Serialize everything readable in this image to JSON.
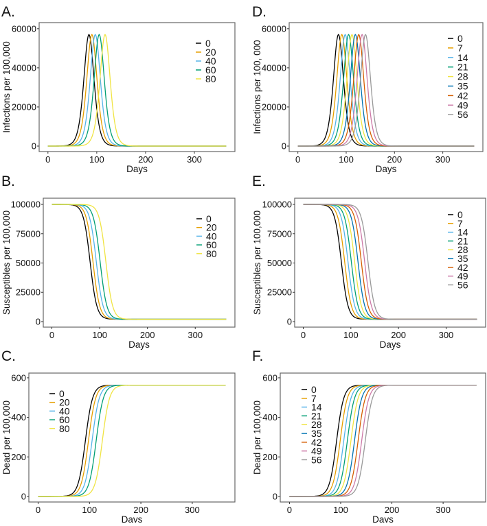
{
  "chart_data": [
    {
      "panel_label": "A.",
      "type": "line",
      "xlabel": "Days",
      "ylabel": "Infections per 100,000",
      "xlim": [
        -18,
        383
      ],
      "ylim": [
        -2800,
        63100
      ],
      "xticks": [
        0,
        100,
        200,
        300
      ],
      "yticks": [
        0,
        20000,
        40000,
        60000
      ],
      "grid": false,
      "legend_position": "top-right",
      "x_domain": [
        0,
        365
      ],
      "curve": "epidemic-peak",
      "peak_value": 57000,
      "series": [
        {
          "name": "0",
          "color": "#000000",
          "peak_day": 84
        },
        {
          "name": "20",
          "color": "#E69F00",
          "peak_day": 90
        },
        {
          "name": "40",
          "color": "#56B4E9",
          "peak_day": 97
        },
        {
          "name": "60",
          "color": "#009E73",
          "peak_day": 105
        },
        {
          "name": "80",
          "color": "#F0E442",
          "peak_day": 117
        }
      ]
    },
    {
      "panel_label": "B.",
      "type": "line",
      "xlabel": "Days",
      "ylabel": "Susceptibles per 100,000",
      "xlim": [
        -18,
        383
      ],
      "ylim": [
        -4700,
        105300
      ],
      "xticks": [
        0,
        100,
        200,
        300
      ],
      "yticks": [
        0,
        25000,
        50000,
        75000,
        100000
      ],
      "grid": false,
      "legend_position": "right",
      "x_domain": [
        0,
        365
      ],
      "curve": "susceptible-decline",
      "start_value": 100000,
      "end_value": 2000,
      "series": [
        {
          "name": "0",
          "color": "#000000",
          "midpoint_day": 80
        },
        {
          "name": "20",
          "color": "#E69F00",
          "midpoint_day": 86
        },
        {
          "name": "40",
          "color": "#56B4E9",
          "midpoint_day": 93
        },
        {
          "name": "60",
          "color": "#009E73",
          "midpoint_day": 101
        },
        {
          "name": "80",
          "color": "#F0E442",
          "midpoint_day": 113
        }
      ]
    },
    {
      "panel_label": "C.",
      "type": "line",
      "xlabel": "Days",
      "ylabel": "Dead per 100,000",
      "xlim": [
        -18,
        383
      ],
      "ylim": [
        -28,
        624
      ],
      "xticks": [
        0,
        100,
        200,
        300
      ],
      "yticks": [
        0,
        200,
        400,
        600
      ],
      "grid": false,
      "legend_position": "top-left",
      "x_domain": [
        0,
        365
      ],
      "curve": "cumulative-deaths",
      "end_value": 563,
      "series": [
        {
          "name": "0",
          "color": "#000000",
          "midpoint_day": 92
        },
        {
          "name": "20",
          "color": "#E69F00",
          "midpoint_day": 98
        },
        {
          "name": "40",
          "color": "#56B4E9",
          "midpoint_day": 105
        },
        {
          "name": "60",
          "color": "#009E73",
          "midpoint_day": 113
        },
        {
          "name": "80",
          "color": "#F0E442",
          "midpoint_day": 125
        }
      ]
    },
    {
      "panel_label": "D.",
      "type": "line",
      "xlabel": "Days",
      "ylabel": "Infections per 100, 000",
      "xlim": [
        -18,
        383
      ],
      "ylim": [
        -2800,
        63100
      ],
      "xticks": [
        0,
        100,
        200,
        300
      ],
      "yticks": [
        0,
        20000,
        40000,
        60000
      ],
      "grid": false,
      "legend_position": "right",
      "x_domain": [
        0,
        365
      ],
      "curve": "epidemic-peak",
      "peak_value": 57000,
      "series": [
        {
          "name": "0",
          "color": "#000000",
          "peak_day": 84
        },
        {
          "name": "7",
          "color": "#E69F00",
          "peak_day": 91
        },
        {
          "name": "14",
          "color": "#56B4E9",
          "peak_day": 98
        },
        {
          "name": "21",
          "color": "#009E73",
          "peak_day": 105
        },
        {
          "name": "28",
          "color": "#F0E442",
          "peak_day": 112
        },
        {
          "name": "35",
          "color": "#0072B2",
          "peak_day": 119
        },
        {
          "name": "42",
          "color": "#D55E00",
          "peak_day": 126
        },
        {
          "name": "49",
          "color": "#CC79A7",
          "peak_day": 133
        },
        {
          "name": "56",
          "color": "#999999",
          "peak_day": 140
        }
      ]
    },
    {
      "panel_label": "E.",
      "type": "line",
      "xlabel": "Days",
      "ylabel": "Susceptibles per 100,000",
      "xlim": [
        -18,
        383
      ],
      "ylim": [
        -4700,
        105300
      ],
      "xticks": [
        0,
        100,
        200,
        300
      ],
      "yticks": [
        0,
        25000,
        50000,
        75000,
        100000
      ],
      "grid": false,
      "legend_position": "right",
      "x_domain": [
        0,
        365
      ],
      "curve": "susceptible-decline",
      "start_value": 100000,
      "end_value": 2000,
      "series": [
        {
          "name": "0",
          "color": "#000000",
          "midpoint_day": 80
        },
        {
          "name": "7",
          "color": "#E69F00",
          "midpoint_day": 87
        },
        {
          "name": "14",
          "color": "#56B4E9",
          "midpoint_day": 94
        },
        {
          "name": "21",
          "color": "#009E73",
          "midpoint_day": 101
        },
        {
          "name": "28",
          "color": "#F0E442",
          "midpoint_day": 108
        },
        {
          "name": "35",
          "color": "#0072B2",
          "midpoint_day": 115
        },
        {
          "name": "42",
          "color": "#D55E00",
          "midpoint_day": 122
        },
        {
          "name": "49",
          "color": "#CC79A7",
          "midpoint_day": 129
        },
        {
          "name": "56",
          "color": "#999999",
          "midpoint_day": 136
        }
      ]
    },
    {
      "panel_label": "F.",
      "type": "line",
      "xlabel": "Days",
      "ylabel": "Dead per 100,000",
      "xlim": [
        -18,
        383
      ],
      "ylim": [
        -28,
        624
      ],
      "xticks": [
        0,
        100,
        200,
        300
      ],
      "yticks": [
        0,
        200,
        400,
        600
      ],
      "grid": false,
      "legend_position": "top-left",
      "x_domain": [
        0,
        365
      ],
      "curve": "cumulative-deaths",
      "end_value": 563,
      "series": [
        {
          "name": "0",
          "color": "#000000",
          "midpoint_day": 92
        },
        {
          "name": "7",
          "color": "#E69F00",
          "midpoint_day": 99
        },
        {
          "name": "14",
          "color": "#56B4E9",
          "midpoint_day": 106
        },
        {
          "name": "21",
          "color": "#009E73",
          "midpoint_day": 113
        },
        {
          "name": "28",
          "color": "#F0E442",
          "midpoint_day": 120
        },
        {
          "name": "35",
          "color": "#0072B2",
          "midpoint_day": 127
        },
        {
          "name": "42",
          "color": "#D55E00",
          "midpoint_day": 134
        },
        {
          "name": "49",
          "color": "#CC79A7",
          "midpoint_day": 141
        },
        {
          "name": "56",
          "color": "#999999",
          "midpoint_day": 148
        }
      ]
    }
  ]
}
